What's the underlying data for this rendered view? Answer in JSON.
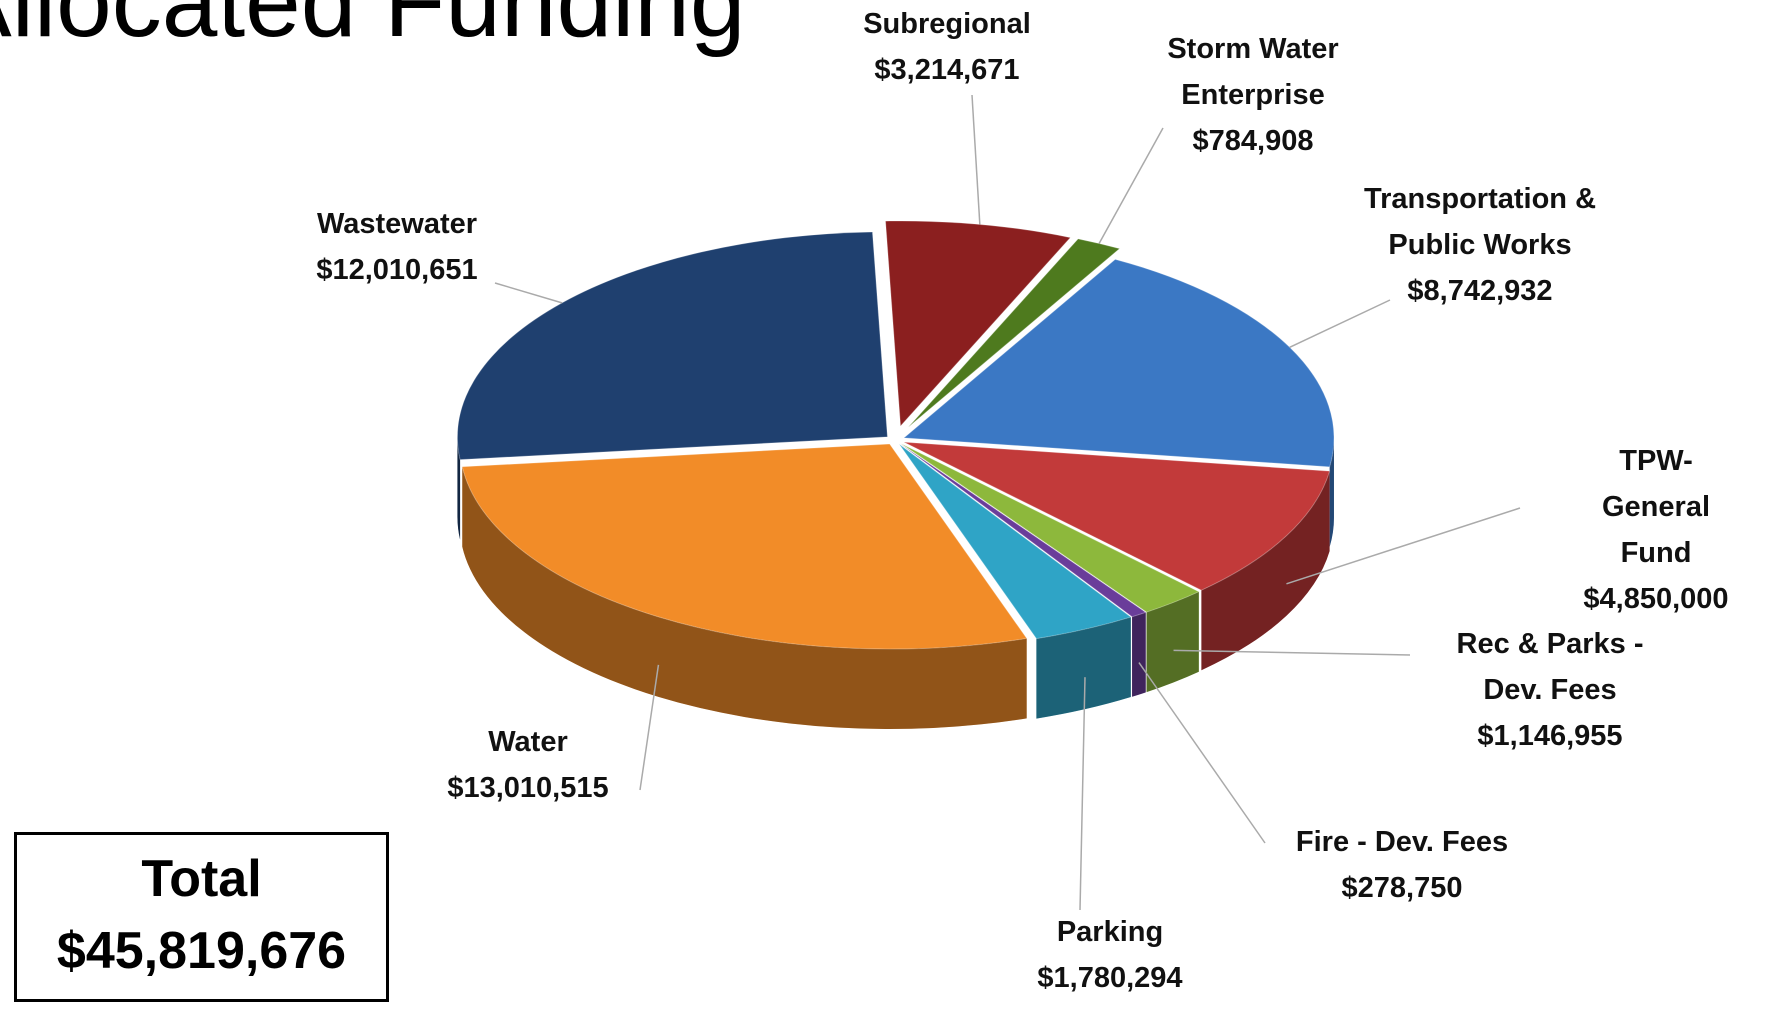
{
  "chart_data": {
    "type": "pie",
    "title": "Allocated Funding",
    "categories": [
      "Subregional",
      "Storm Water\nEnterprise",
      "Transportation &\nPublic Works",
      "TPW-\nGeneral Fund",
      "Rec & Parks -\nDev. Fees",
      "Fire - Dev. Fees",
      "Parking",
      "Water",
      "Wastewater"
    ],
    "values": [
      3214671,
      784908,
      8742932,
      4850000,
      1146955,
      278750,
      1780294,
      13010515,
      12010651
    ],
    "value_labels": [
      "$3,214,671",
      "$784,908",
      "$8,742,932",
      "$4,850,000",
      "$1,146,955",
      "$278,750",
      "$1,780,294",
      "$13,010,515",
      "$12,010,651"
    ],
    "colors": [
      "#8b1f1f",
      "#4e7a1e",
      "#3b78c4",
      "#c23a3a",
      "#8db83c",
      "#6a3d9a",
      "#2fa4c6",
      "#f28c28",
      "#1f406f"
    ],
    "total_title": "Total",
    "total_text": "$45,819,676"
  }
}
